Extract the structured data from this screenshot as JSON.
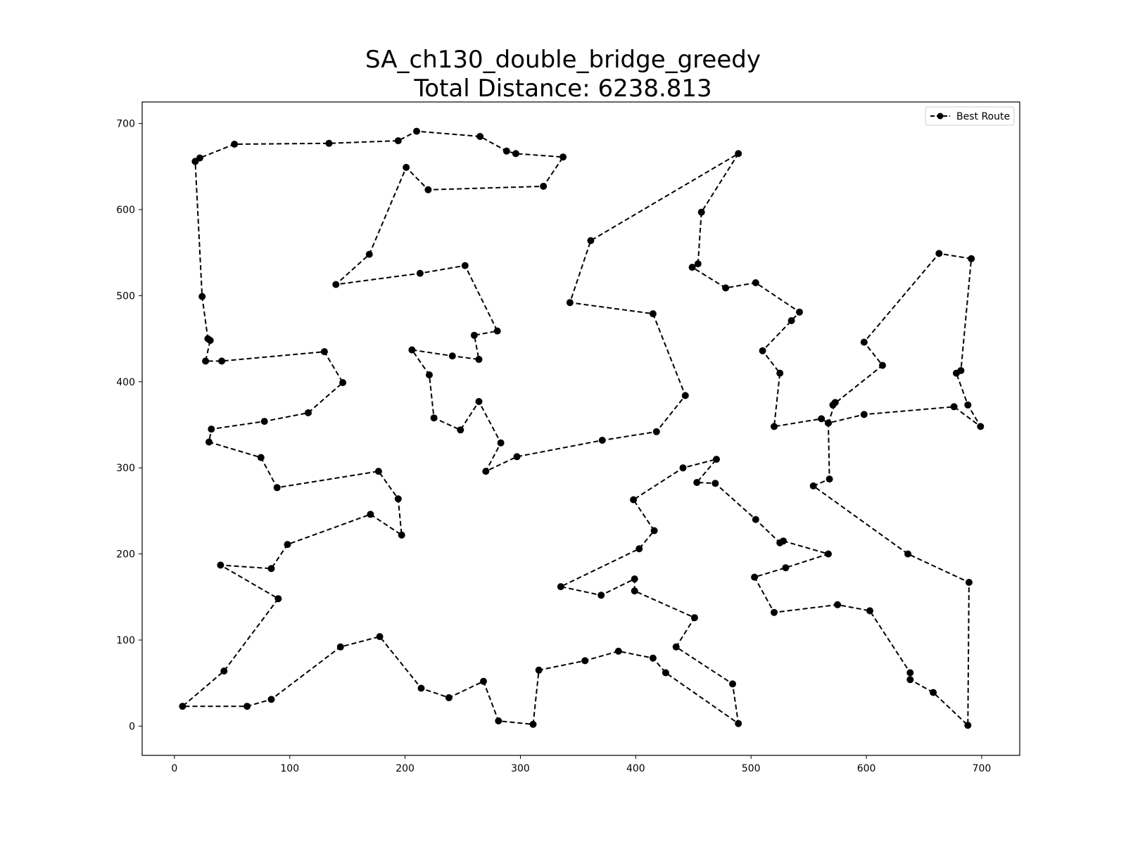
{
  "chart_data": {
    "type": "line",
    "title": "SA_ch130_double_bridge_greedy",
    "subtitle": "Total Distance: 6238.813",
    "xlabel": "",
    "ylabel": "",
    "xlim": [
      -28,
      733
    ],
    "ylim": [
      -34,
      725
    ],
    "x_ticks": [
      0,
      100,
      200,
      300,
      400,
      500,
      600,
      700
    ],
    "y_ticks": [
      0,
      100,
      200,
      300,
      400,
      500,
      600,
      700
    ],
    "grid": false,
    "legend_position": "top-right",
    "series": [
      {
        "name": "Best Route",
        "color": "#000000",
        "line_style": "dashed",
        "marker": "circle",
        "points": [
          [
            18,
            656
          ],
          [
            22,
            660
          ],
          [
            52,
            676
          ],
          [
            134,
            677
          ],
          [
            194,
            680
          ],
          [
            210,
            691
          ],
          [
            265,
            685
          ],
          [
            288,
            668
          ],
          [
            296,
            665
          ],
          [
            337,
            661
          ],
          [
            320,
            627
          ],
          [
            220,
            623
          ],
          [
            201,
            649
          ],
          [
            169,
            548
          ],
          [
            140,
            513
          ],
          [
            213,
            526
          ],
          [
            252,
            535
          ],
          [
            280,
            459
          ],
          [
            260,
            454
          ],
          [
            264,
            426
          ],
          [
            241,
            430
          ],
          [
            206,
            437
          ],
          [
            221,
            408
          ],
          [
            225,
            358
          ],
          [
            248,
            344
          ],
          [
            264,
            377
          ],
          [
            283,
            329
          ],
          [
            270,
            296
          ],
          [
            297,
            313
          ],
          [
            371,
            332
          ],
          [
            418,
            342
          ],
          [
            443,
            384
          ],
          [
            415,
            479
          ],
          [
            343,
            492
          ],
          [
            361,
            564
          ],
          [
            489,
            665
          ],
          [
            457,
            597
          ],
          [
            454,
            537
          ],
          [
            449,
            533
          ],
          [
            478,
            509
          ],
          [
            504,
            515
          ],
          [
            542,
            481
          ],
          [
            535,
            471
          ],
          [
            510,
            436
          ],
          [
            525,
            410
          ],
          [
            520,
            348
          ],
          [
            561,
            357
          ],
          [
            567,
            352
          ],
          [
            573,
            376
          ],
          [
            571,
            373
          ],
          [
            614,
            419
          ],
          [
            598,
            446
          ],
          [
            663,
            549
          ],
          [
            691,
            543
          ],
          [
            682,
            413
          ],
          [
            678,
            410
          ],
          [
            688,
            373
          ],
          [
            699,
            348
          ],
          [
            676,
            371
          ],
          [
            598,
            362
          ],
          [
            567,
            352
          ],
          [
            568,
            287
          ],
          [
            554,
            279
          ],
          [
            636,
            200
          ],
          [
            689,
            167
          ],
          [
            688,
            1
          ],
          [
            658,
            39
          ],
          [
            638,
            54
          ],
          [
            638,
            62
          ],
          [
            603,
            134
          ],
          [
            575,
            141
          ],
          [
            520,
            132
          ],
          [
            503,
            173
          ],
          [
            530,
            184
          ],
          [
            567,
            200
          ],
          [
            528,
            215
          ],
          [
            525,
            213
          ],
          [
            504,
            240
          ],
          [
            469,
            282
          ],
          [
            453,
            283
          ],
          [
            470,
            310
          ],
          [
            441,
            300
          ],
          [
            398,
            263
          ],
          [
            416,
            227
          ],
          [
            403,
            206
          ],
          [
            335,
            162
          ],
          [
            370,
            152
          ],
          [
            399,
            171
          ],
          [
            399,
            157
          ],
          [
            451,
            126
          ],
          [
            435,
            92
          ],
          [
            484,
            49
          ],
          [
            489,
            3
          ],
          [
            426,
            62
          ],
          [
            415,
            79
          ],
          [
            385,
            87
          ],
          [
            356,
            76
          ],
          [
            316,
            65
          ],
          [
            311,
            2
          ],
          [
            281,
            6
          ],
          [
            268,
            52
          ],
          [
            238,
            33
          ],
          [
            214,
            44
          ],
          [
            178,
            104
          ],
          [
            144,
            92
          ],
          [
            84,
            31
          ],
          [
            63,
            23
          ],
          [
            7,
            23
          ],
          [
            43,
            64
          ],
          [
            90,
            148
          ],
          [
            40,
            187
          ],
          [
            84,
            183
          ],
          [
            98,
            211
          ],
          [
            170,
            246
          ],
          [
            197,
            222
          ],
          [
            194,
            264
          ],
          [
            177,
            296
          ],
          [
            89,
            277
          ],
          [
            75,
            312
          ],
          [
            30,
            330
          ],
          [
            32,
            345
          ],
          [
            78,
            354
          ],
          [
            116,
            364
          ],
          [
            146,
            399
          ],
          [
            130,
            435
          ],
          [
            41,
            424
          ],
          [
            27,
            424
          ],
          [
            31,
            448
          ],
          [
            29,
            450
          ],
          [
            24,
            499
          ],
          [
            18,
            656
          ]
        ]
      }
    ]
  }
}
